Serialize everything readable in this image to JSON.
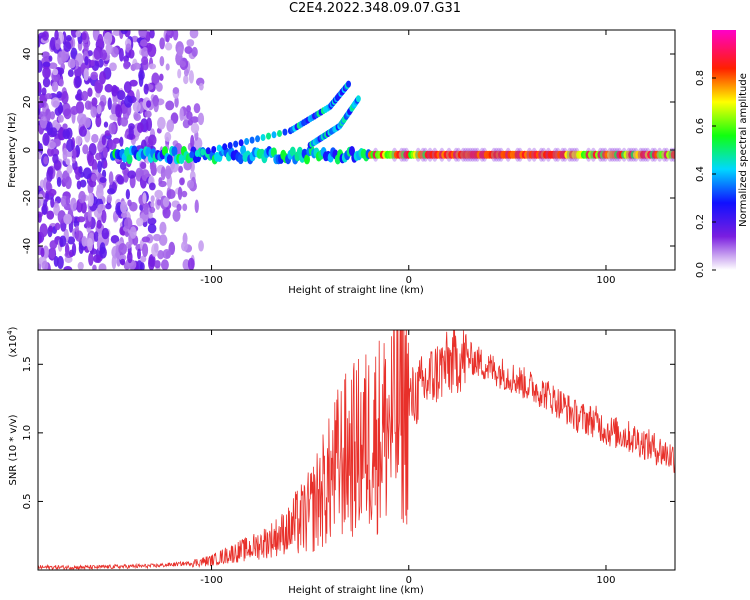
{
  "page": {
    "title": "C2E4.2022.348.09.07.G31"
  },
  "chart_data": [
    {
      "type": "heatmap",
      "xlabel": "Height of straight line (km)",
      "ylabel": "Frequency (Hz)",
      "xlim": [
        -188,
        135
      ],
      "ylim": [
        -50,
        50
      ],
      "xticks": [
        -100,
        0,
        100
      ],
      "xtick_labels": [
        "-100",
        "0",
        "100"
      ],
      "yticks": [
        -40,
        -20,
        0,
        20,
        40
      ],
      "ytick_labels": [
        "-40",
        "-20",
        "0",
        "20",
        "40"
      ],
      "colorbar": {
        "label": "Normalized spectral amplitude",
        "range": [
          0,
          1
        ],
        "ticks": [
          0.0,
          0.2,
          0.4,
          0.6,
          0.8
        ],
        "tick_labels": [
          "0.0",
          "0.2",
          "0.4",
          "0.6",
          "0.8"
        ],
        "colormap": [
          "#ffffff",
          "#7a1ee0",
          "#0000ff",
          "#00ffff",
          "#00ff00",
          "#ffff00",
          "#ff0000",
          "#ff00ff"
        ]
      },
      "features": {
        "carrier_line": {
          "frequency_hz": -2,
          "x_start": -150,
          "x_end": 135
        },
        "noise_region": {
          "x_start": -188,
          "x_end": -105,
          "freq_range": [
            -50,
            50
          ]
        },
        "upper_branches": [
          {
            "x": [
              -110,
              -60,
              -40,
              -30
            ],
            "f": [
              -2,
              8,
              18,
              28
            ]
          },
          {
            "x": [
              -50,
              -35,
              -25
            ],
            "f": [
              2,
              10,
              22
            ]
          }
        ]
      }
    },
    {
      "type": "line",
      "xlabel": "Height of straight line (km)",
      "ylabel": "SNR (10 * v/v)",
      "y_scale_label": "(x10",
      "y_scale_exponent": "4",
      "xlim": [
        -188,
        135
      ],
      "ylim": [
        0,
        1.75
      ],
      "xticks": [
        -100,
        0,
        100
      ],
      "xtick_labels": [
        "-100",
        "0",
        "100"
      ],
      "yticks": [
        0.5,
        1.0,
        1.5
      ],
      "ytick_labels": [
        "0.5",
        "1.0",
        "1.5"
      ],
      "series": [
        {
          "color": "#e8302a",
          "x": [
            -188,
            -160,
            -130,
            -110,
            -100,
            -90,
            -80,
            -70,
            -60,
            -50,
            -45,
            -40,
            -35,
            -30,
            -25,
            -20,
            -15,
            -10,
            -5,
            0,
            5,
            10,
            15,
            20,
            25,
            30,
            35,
            40,
            45,
            50,
            60,
            70,
            80,
            85,
            90,
            95,
            100,
            110,
            120,
            130,
            135
          ],
          "y": [
            0.02,
            0.02,
            0.03,
            0.05,
            0.07,
            0.12,
            0.16,
            0.22,
            0.3,
            0.42,
            0.55,
            0.65,
            0.8,
            0.85,
            0.9,
            0.95,
            1.0,
            1.05,
            1.15,
            1.22,
            1.3,
            1.38,
            1.45,
            1.5,
            1.53,
            1.55,
            1.52,
            1.48,
            1.45,
            1.42,
            1.35,
            1.28,
            1.18,
            1.12,
            1.1,
            1.08,
            1.02,
            0.98,
            0.92,
            0.85,
            0.82
          ]
        }
      ]
    }
  ]
}
